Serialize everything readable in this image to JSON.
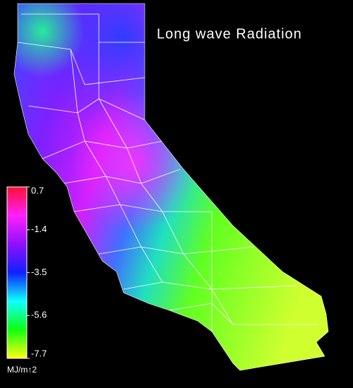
{
  "title": "Long wave Radiation",
  "colorbar": {
    "min": -7.7,
    "max": 0.7,
    "ticks": [
      0.7,
      -1.4,
      -3.5,
      -5.6,
      -7.7
    ],
    "colors": [
      "#ff1030",
      "#ff20ff",
      "#9010ff",
      "#1020ff",
      "#10ffff",
      "#10ff10",
      "#ffff10"
    ],
    "unit": "MJ/m↑2"
  }
}
